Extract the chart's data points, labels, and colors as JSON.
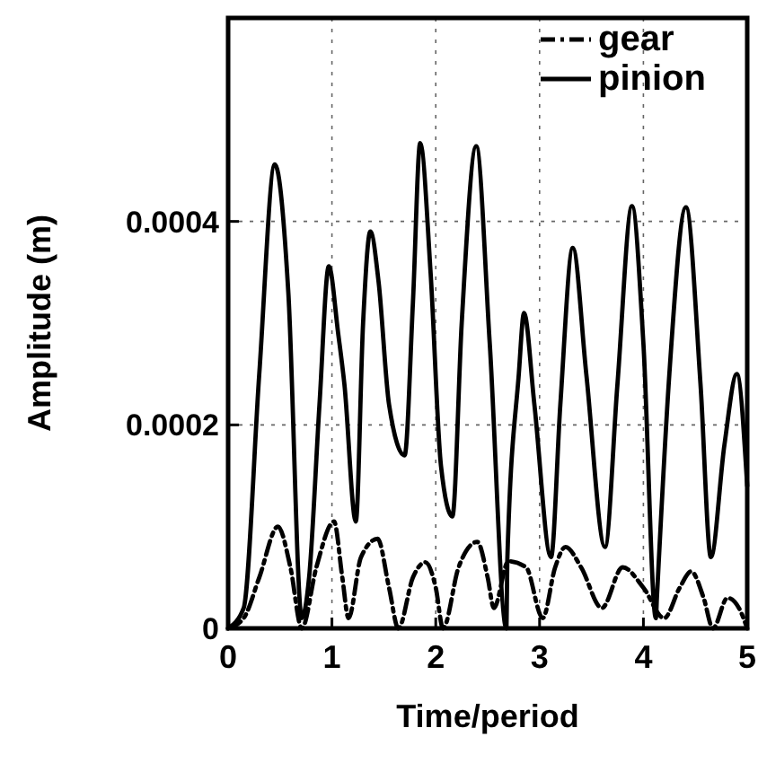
{
  "chart_data": {
    "type": "line",
    "xlabel": "Time/period",
    "ylabel": "Amplitude (m)",
    "xlim": [
      0,
      5
    ],
    "ylim": [
      0,
      0.0006
    ],
    "xticks": [
      0,
      1,
      2,
      3,
      4,
      5
    ],
    "yticks": [
      0,
      0.0002,
      0.0004
    ],
    "grid": true,
    "legend": "top right",
    "series": [
      {
        "name": "gear",
        "color": "#000000",
        "line_style": "dashdot",
        "x": [
          0,
          0.15,
          0.3,
          0.48,
          0.6,
          0.71,
          0.85,
          1.02,
          1.1,
          1.16,
          1.28,
          1.44,
          1.55,
          1.64,
          1.78,
          1.9,
          2.0,
          2.07,
          2.22,
          2.4,
          2.5,
          2.56,
          2.7,
          2.87,
          3.03,
          3.15,
          3.25,
          3.4,
          3.6,
          3.8,
          4.0,
          4.2,
          4.35,
          4.46,
          4.58,
          4.67,
          4.81,
          4.92,
          5
        ],
        "values": [
          0,
          1e-05,
          5e-05,
          0.0001,
          6e-05,
          0,
          6e-05,
          0.000105,
          5e-05,
          1e-05,
          7e-05,
          8.8e-05,
          4e-05,
          0,
          5e-05,
          6.5e-05,
          4e-05,
          0,
          6e-05,
          8.5e-05,
          5e-05,
          2e-05,
          6.6e-05,
          6e-05,
          1e-05,
          6e-05,
          8e-05,
          6e-05,
          2e-05,
          6e-05,
          4e-05,
          1e-05,
          4e-05,
          5.6e-05,
          3e-05,
          0,
          3e-05,
          2e-05,
          0
        ]
      },
      {
        "name": "pinion",
        "color": "#000000",
        "line_style": "solid",
        "x": [
          0,
          0.15,
          0.3,
          0.45,
          0.58,
          0.71,
          0.78,
          0.88,
          0.97,
          1.06,
          1.12,
          1.23,
          1.3,
          1.37,
          1.45,
          1.55,
          1.7,
          1.78,
          1.85,
          1.95,
          2.05,
          2.16,
          2.25,
          2.39,
          2.52,
          2.68,
          2.69,
          2.8,
          2.85,
          2.95,
          3.11,
          3.2,
          3.32,
          3.45,
          3.63,
          3.75,
          3.89,
          4.0,
          4.12,
          4.13,
          4.25,
          4.41,
          4.55,
          4.65,
          4.78,
          4.9,
          5
        ],
        "values": [
          0,
          2e-05,
          0.00025,
          0.000456,
          0.00033,
          1e-05,
          5e-05,
          0.00022,
          0.000356,
          0.00029,
          0.00024,
          0.000105,
          0.0003,
          0.00039,
          0.00034,
          0.00022,
          0.00017,
          0.00032,
          0.000477,
          0.00035,
          0.00016,
          0.00011,
          0.0003,
          0.000474,
          0.00028,
          0,
          7e-05,
          0.00025,
          0.00031,
          0.00022,
          7e-05,
          0.00022,
          0.000374,
          0.00025,
          8e-05,
          0.00024,
          0.000415,
          0.00028,
          1e-05,
          3e-05,
          0.00025,
          0.000414,
          0.00024,
          7e-05,
          0.00018,
          0.00025,
          0.00014
        ]
      }
    ]
  }
}
